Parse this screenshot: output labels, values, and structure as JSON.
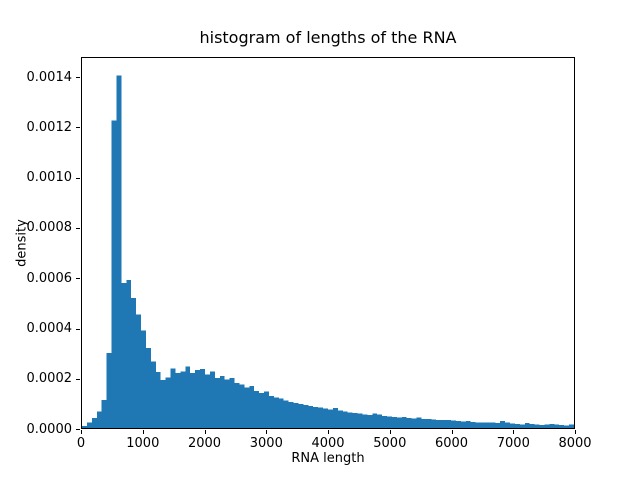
{
  "figure": {
    "background": "#ffffff"
  },
  "chart_data": {
    "type": "bar",
    "subtype": "histogram",
    "title": "histogram of lengths of the RNA",
    "xlabel": "RNA length",
    "ylabel": "density",
    "xlim": [
      0,
      8000
    ],
    "ylim": [
      0,
      0.00148
    ],
    "grid": false,
    "legend": null,
    "bar_color": "#1f77b4",
    "axis_color": "#000000",
    "bin_start": 0,
    "bin_width": 80,
    "num_bins": 100,
    "x_ticks": [
      0,
      1000,
      2000,
      3000,
      4000,
      5000,
      6000,
      7000,
      8000
    ],
    "x_tick_labels": [
      "0",
      "1000",
      "2000",
      "3000",
      "4000",
      "5000",
      "6000",
      "7000",
      "8000"
    ],
    "y_ticks": [
      0,
      0.0002,
      0.0004,
      0.0006,
      0.0008,
      0.001,
      0.0012,
      0.0014
    ],
    "y_tick_labels": [
      "0.0000",
      "0.0002",
      "0.0004",
      "0.0006",
      "0.0008",
      "0.0010",
      "0.0012",
      "0.0014"
    ],
    "peak": {
      "x_range": [
        560,
        640
      ],
      "density": 0.00141
    },
    "densities": [
      8e-06,
      2.2e-05,
      4e-05,
      6.5e-05,
      0.000112,
      0.0003,
      0.00123,
      0.00141,
      0.00058,
      0.000592,
      0.00052,
      0.000455,
      0.00039,
      0.00032,
      0.000265,
      0.000225,
      0.000192,
      0.000202,
      0.000238,
      0.00022,
      0.000226,
      0.000246,
      0.00022,
      0.000233,
      0.000236,
      0.000213,
      0.000226,
      0.0002,
      0.000207,
      0.000194,
      0.0002,
      0.000181,
      0.000174,
      0.000161,
      0.000167,
      0.000148,
      0.000141,
      0.000145,
      0.000128,
      0.000122,
      0.000118,
      0.00011,
      0.000105,
      0.0001,
      9.5e-05,
      9.2e-05,
      8.8e-05,
      8.5e-05,
      8.2e-05,
      7.8e-05,
      7.5e-05,
      8e-05,
      7e-05,
      6.5e-05,
      6.2e-05,
      6e-05,
      5.8e-05,
      5.4e-05,
      5.2e-05,
      5.8e-05,
      5.5e-05,
      4.8e-05,
      4.6e-05,
      4.4e-05,
      4.2e-05,
      4.3e-05,
      4e-05,
      3.9e-05,
      4.1e-05,
      3.7e-05,
      3.5e-05,
      3.4e-05,
      3.3e-05,
      3.2e-05,
      3.3e-05,
      2.9e-05,
      2.8e-05,
      2.6e-05,
      2.7e-05,
      2.4e-05,
      2.3e-05,
      2.2e-05,
      2.1e-05,
      2.2e-05,
      2e-05,
      2.8e-05,
      2.2e-05,
      1.8e-05,
      1.6e-05,
      1.5e-05,
      1.9e-05,
      1.6e-05,
      1.3e-05,
      1.2e-05,
      1.4e-05,
      1.6e-05,
      1.3e-05,
      1.2e-05,
      1.1e-05,
      1.4e-05
    ]
  }
}
